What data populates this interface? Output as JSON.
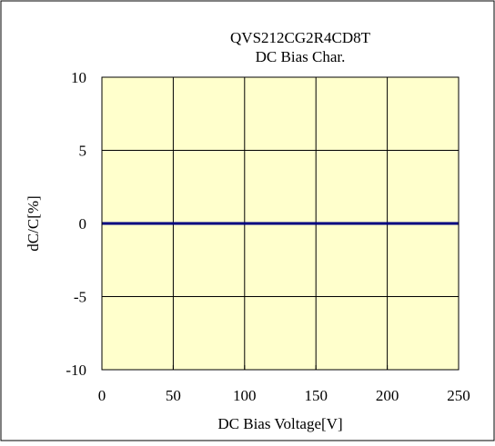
{
  "chart_data": {
    "type": "line",
    "title": "QVS212CG2R4CD8T",
    "subtitle": "DC Bias Char.",
    "xlabel": "DC Bias Voltage[V]",
    "ylabel": "dC/C[%]",
    "xlim": [
      0,
      250
    ],
    "ylim": [
      -10,
      10
    ],
    "x_ticks": [
      "0",
      "50",
      "100",
      "150",
      "200",
      "250"
    ],
    "y_ticks": [
      "10",
      "5",
      "0",
      "-5",
      "-10"
    ],
    "grid": true,
    "legend": "none",
    "series": [
      {
        "x": [
          0,
          50,
          100,
          150,
          200,
          250
        ],
        "values": [
          0,
          0,
          0,
          0,
          0,
          0
        ]
      }
    ]
  },
  "colors": {
    "plot_background": "#ffffcc",
    "series_line": "#000080",
    "grid": "#000000",
    "frame": "#000000"
  }
}
